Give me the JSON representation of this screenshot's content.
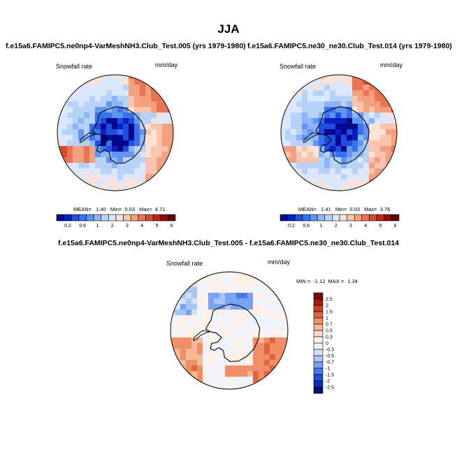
{
  "figure": {
    "season": "JJA"
  },
  "palette": {
    "main": [
      "#08088c",
      "#0a1fc0",
      "#1e4fe0",
      "#3a72ee",
      "#6294f2",
      "#8db5f6",
      "#b7d2f9",
      "#dbe8fb",
      "#fbe2d6",
      "#f8c5ae",
      "#f2a07f",
      "#e87453",
      "#d84a2c",
      "#b8281a",
      "#8c0f0c",
      "#5c0606"
    ],
    "diff": [
      "#00127a",
      "#0a2fb8",
      "#1f52d8",
      "#4779ea",
      "#7aa2f2",
      "#a9c5f7",
      "#d2e2fb",
      "#eef4fd",
      "#fdf0e6",
      "#fbd9c4",
      "#f7b899",
      "#f08e68",
      "#e4643e",
      "#cc3c1f",
      "#a61b0e",
      "#780805"
    ]
  },
  "chart_data": [
    {
      "type": "heatmap",
      "projection": "south-polar-stereographic",
      "title": "f.e15a6.FAMIPC5.ne0np4-VarMeshNH3.Club_Test.005 (yrs 1979-1980)",
      "left_label": "Snowfall rate",
      "right_label": "mm/day",
      "stats": {
        "mean_label": "MEAN=",
        "mean": "1.40",
        "min_label": "Min=",
        "min": "0.03",
        "max_label": "Max=",
        "max": "4.71"
      },
      "colorbar": {
        "orientation": "horizontal",
        "levels": [
          "0.2",
          "0.6",
          "1",
          "2",
          "3",
          "4",
          "5",
          "6"
        ]
      }
    },
    {
      "type": "heatmap",
      "projection": "south-polar-stereographic",
      "title": "f.e15a6.FAMIPC5.ne30_ne30.Club_Test.014 (yrs 1979-1980)",
      "left_label": "Snowfall rate",
      "right_label": "mm/day",
      "stats": {
        "mean_label": "MEAN=",
        "mean": "1.41",
        "min_label": "Min=",
        "min": "0.03",
        "max_label": "Max=",
        "max": "3.76"
      },
      "colorbar": {
        "orientation": "horizontal",
        "levels": [
          "0.2",
          "0.6",
          "1",
          "2",
          "3",
          "4",
          "5",
          "6"
        ]
      }
    },
    {
      "type": "heatmap",
      "projection": "south-polar-stereographic",
      "title": "f.e15a6.FAMIPC5.ne0np4-VarMeshNH3.Club_Test.005 - f.e15a6.FAMIPC5.ne30_ne30.Club_Test.014",
      "left_label": "Snowfall rate",
      "right_label": "mm/day",
      "stats": {
        "min_label": "MIN =",
        "min": "-1.12",
        "max_label": "MAX =",
        "max": "1.34"
      },
      "colorbar": {
        "orientation": "vertical",
        "levels": [
          "2.5",
          "2",
          "1.5",
          "1",
          "0.7",
          "0.5",
          "0.3",
          "0",
          "-0.3",
          "-0.5",
          "-0.7",
          "-1",
          "-1.5",
          "-2",
          "-2.5"
        ]
      }
    }
  ]
}
